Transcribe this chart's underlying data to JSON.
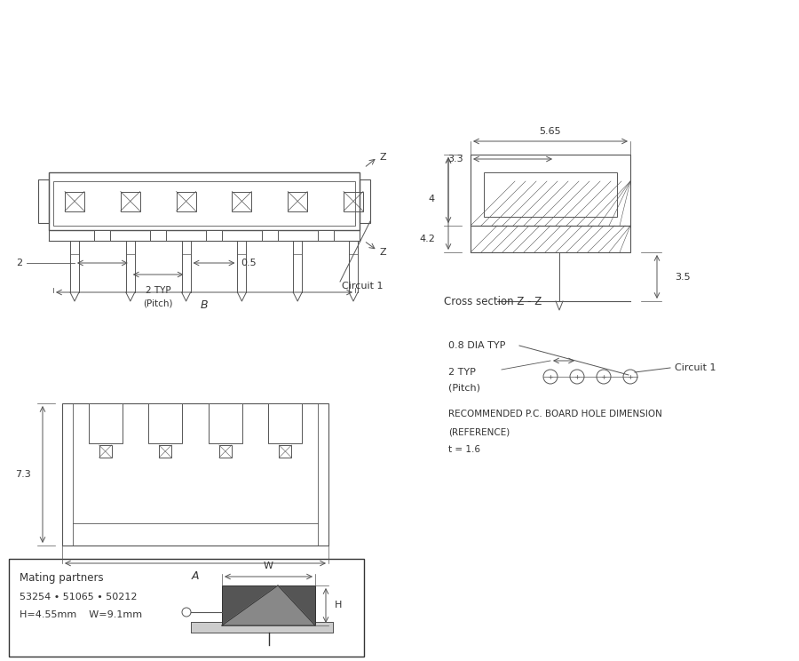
{
  "bg_color": "#ffffff",
  "line_color": "#555555",
  "dark_color": "#333333",
  "fig_width": 9.0,
  "fig_height": 7.44,
  "annotations": {
    "top_view_z1": "Z",
    "top_view_z2": "Z",
    "circuit1_top": "Circuit 1",
    "dim_2": "2",
    "dim_05": "0.5",
    "dim_2typ": "2 TYP\n(Pitch)",
    "dim_B": "B",
    "cross_section": "Cross section Z - Z",
    "dim_565": "5.65",
    "dim_33": "3.3",
    "dim_4": "4",
    "dim_42": "4.2",
    "dim_35": "3.5",
    "dim_073dia": "0.8 DIA TYP",
    "dim_2typ_bottom": "2 TYP\n(Pitch)",
    "circuit1_bottom": "Circuit 1",
    "pc_board": "RECOMMENDED P.C. BOARD HOLE DIMENSION\n(REFERENCE)\nt = 1.6",
    "side_view_73": "7.3",
    "side_view_A": "A",
    "mating_title": "Mating partners",
    "mating_parts": "53254 • 51065 • 50212",
    "mating_dims": "H=4.55mm    W=9.1mm",
    "dim_W": "W",
    "dim_H": "H"
  }
}
